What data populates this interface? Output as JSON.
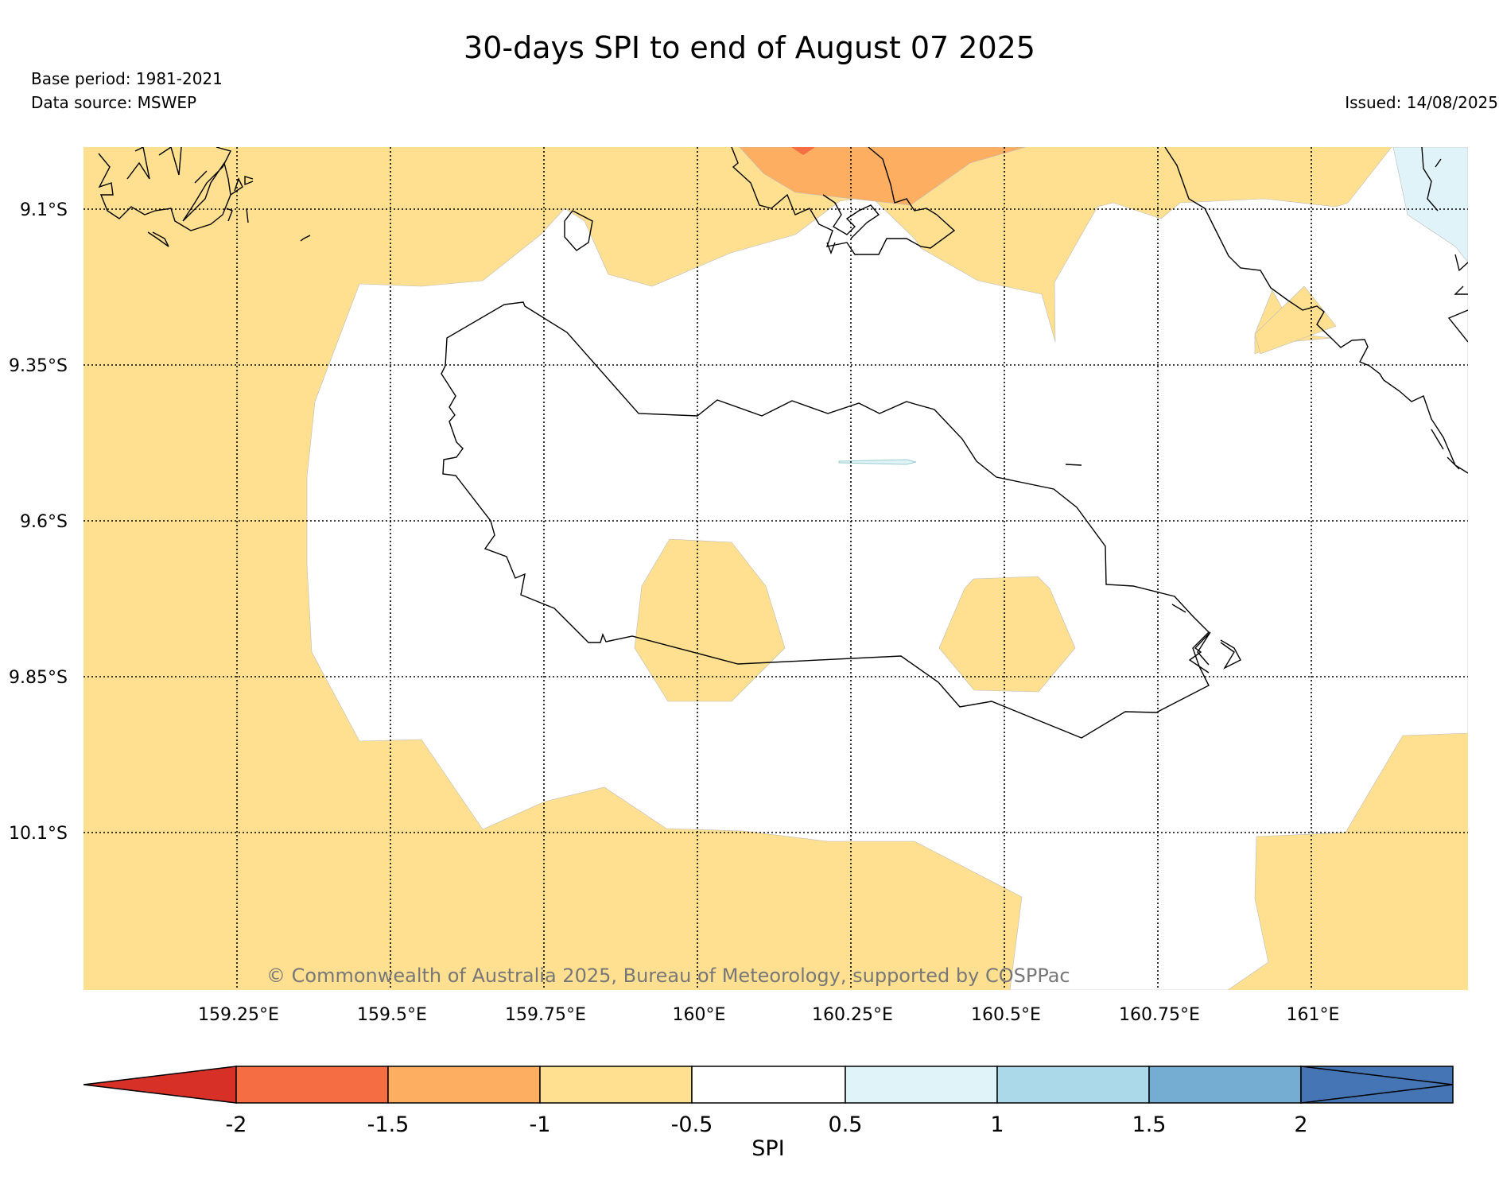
{
  "header": {
    "title": "30-days SPI to end of August 07 2025",
    "base_period": "Base period: 1981-2021",
    "data_source": "Data source: MSWEP",
    "issued": "Issued: 14/08/2025"
  },
  "map": {
    "lat_labels": [
      "9.1°S",
      "9.35°S",
      "9.6°S",
      "9.85°S",
      "10.1°S"
    ],
    "lon_labels": [
      "159.25°E",
      "159.5°E",
      "159.75°E",
      "160°E",
      "160.25°E",
      "160.5°E",
      "160.75°E",
      "161°E"
    ],
    "copyright": "© Commonwealth of Australia 2025, Bureau of Meteorology, supported by COSPPac",
    "spi_classes": [
      {
        "range": "< -2",
        "color": "#d73027"
      },
      {
        "range": "-2 to -1.5",
        "color": "#f46d43"
      },
      {
        "range": "-1.5 to -1",
        "color": "#fdae61"
      },
      {
        "range": "-1 to -0.5",
        "color": "#fee090"
      },
      {
        "range": "-0.5 to 0.5",
        "color": "#ffffff"
      },
      {
        "range": "0.5 to 1",
        "color": "#e0f3f8"
      },
      {
        "range": "1 to 1.5",
        "color": "#abd9e9"
      },
      {
        "range": "1.5 to 2",
        "color": "#74add1"
      },
      {
        "range": "> 2",
        "color": "#4575b4"
      }
    ]
  },
  "colorbar": {
    "tick_labels": [
      "-2",
      "-1.5",
      "-1",
      "-0.5",
      "0.5",
      "1",
      "1.5",
      "2"
    ],
    "label": "SPI"
  }
}
